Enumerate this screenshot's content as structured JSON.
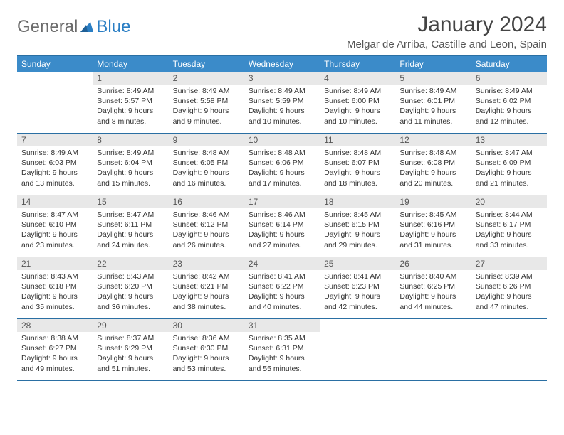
{
  "logo": {
    "general": "General",
    "blue": "Blue"
  },
  "title": "January 2024",
  "location": "Melgar de Arriba, Castille and Leon, Spain",
  "colors": {
    "header_bg": "#3b8bc9",
    "header_text": "#ffffff",
    "row_border": "#2a6fa3",
    "daynum_bg": "#e8e8e8",
    "logo_blue": "#2a7ec4",
    "logo_gray": "#6b6b6b",
    "body_text": "#333333"
  },
  "dayNames": [
    "Sunday",
    "Monday",
    "Tuesday",
    "Wednesday",
    "Thursday",
    "Friday",
    "Saturday"
  ],
  "weeks": [
    [
      null,
      {
        "n": "1",
        "sr": "Sunrise: 8:49 AM",
        "ss": "Sunset: 5:57 PM",
        "dl": "Daylight: 9 hours and 8 minutes."
      },
      {
        "n": "2",
        "sr": "Sunrise: 8:49 AM",
        "ss": "Sunset: 5:58 PM",
        "dl": "Daylight: 9 hours and 9 minutes."
      },
      {
        "n": "3",
        "sr": "Sunrise: 8:49 AM",
        "ss": "Sunset: 5:59 PM",
        "dl": "Daylight: 9 hours and 10 minutes."
      },
      {
        "n": "4",
        "sr": "Sunrise: 8:49 AM",
        "ss": "Sunset: 6:00 PM",
        "dl": "Daylight: 9 hours and 10 minutes."
      },
      {
        "n": "5",
        "sr": "Sunrise: 8:49 AM",
        "ss": "Sunset: 6:01 PM",
        "dl": "Daylight: 9 hours and 11 minutes."
      },
      {
        "n": "6",
        "sr": "Sunrise: 8:49 AM",
        "ss": "Sunset: 6:02 PM",
        "dl": "Daylight: 9 hours and 12 minutes."
      }
    ],
    [
      {
        "n": "7",
        "sr": "Sunrise: 8:49 AM",
        "ss": "Sunset: 6:03 PM",
        "dl": "Daylight: 9 hours and 13 minutes."
      },
      {
        "n": "8",
        "sr": "Sunrise: 8:49 AM",
        "ss": "Sunset: 6:04 PM",
        "dl": "Daylight: 9 hours and 15 minutes."
      },
      {
        "n": "9",
        "sr": "Sunrise: 8:48 AM",
        "ss": "Sunset: 6:05 PM",
        "dl": "Daylight: 9 hours and 16 minutes."
      },
      {
        "n": "10",
        "sr": "Sunrise: 8:48 AM",
        "ss": "Sunset: 6:06 PM",
        "dl": "Daylight: 9 hours and 17 minutes."
      },
      {
        "n": "11",
        "sr": "Sunrise: 8:48 AM",
        "ss": "Sunset: 6:07 PM",
        "dl": "Daylight: 9 hours and 18 minutes."
      },
      {
        "n": "12",
        "sr": "Sunrise: 8:48 AM",
        "ss": "Sunset: 6:08 PM",
        "dl": "Daylight: 9 hours and 20 minutes."
      },
      {
        "n": "13",
        "sr": "Sunrise: 8:47 AM",
        "ss": "Sunset: 6:09 PM",
        "dl": "Daylight: 9 hours and 21 minutes."
      }
    ],
    [
      {
        "n": "14",
        "sr": "Sunrise: 8:47 AM",
        "ss": "Sunset: 6:10 PM",
        "dl": "Daylight: 9 hours and 23 minutes."
      },
      {
        "n": "15",
        "sr": "Sunrise: 8:47 AM",
        "ss": "Sunset: 6:11 PM",
        "dl": "Daylight: 9 hours and 24 minutes."
      },
      {
        "n": "16",
        "sr": "Sunrise: 8:46 AM",
        "ss": "Sunset: 6:12 PM",
        "dl": "Daylight: 9 hours and 26 minutes."
      },
      {
        "n": "17",
        "sr": "Sunrise: 8:46 AM",
        "ss": "Sunset: 6:14 PM",
        "dl": "Daylight: 9 hours and 27 minutes."
      },
      {
        "n": "18",
        "sr": "Sunrise: 8:45 AM",
        "ss": "Sunset: 6:15 PM",
        "dl": "Daylight: 9 hours and 29 minutes."
      },
      {
        "n": "19",
        "sr": "Sunrise: 8:45 AM",
        "ss": "Sunset: 6:16 PM",
        "dl": "Daylight: 9 hours and 31 minutes."
      },
      {
        "n": "20",
        "sr": "Sunrise: 8:44 AM",
        "ss": "Sunset: 6:17 PM",
        "dl": "Daylight: 9 hours and 33 minutes."
      }
    ],
    [
      {
        "n": "21",
        "sr": "Sunrise: 8:43 AM",
        "ss": "Sunset: 6:18 PM",
        "dl": "Daylight: 9 hours and 35 minutes."
      },
      {
        "n": "22",
        "sr": "Sunrise: 8:43 AM",
        "ss": "Sunset: 6:20 PM",
        "dl": "Daylight: 9 hours and 36 minutes."
      },
      {
        "n": "23",
        "sr": "Sunrise: 8:42 AM",
        "ss": "Sunset: 6:21 PM",
        "dl": "Daylight: 9 hours and 38 minutes."
      },
      {
        "n": "24",
        "sr": "Sunrise: 8:41 AM",
        "ss": "Sunset: 6:22 PM",
        "dl": "Daylight: 9 hours and 40 minutes."
      },
      {
        "n": "25",
        "sr": "Sunrise: 8:41 AM",
        "ss": "Sunset: 6:23 PM",
        "dl": "Daylight: 9 hours and 42 minutes."
      },
      {
        "n": "26",
        "sr": "Sunrise: 8:40 AM",
        "ss": "Sunset: 6:25 PM",
        "dl": "Daylight: 9 hours and 44 minutes."
      },
      {
        "n": "27",
        "sr": "Sunrise: 8:39 AM",
        "ss": "Sunset: 6:26 PM",
        "dl": "Daylight: 9 hours and 47 minutes."
      }
    ],
    [
      {
        "n": "28",
        "sr": "Sunrise: 8:38 AM",
        "ss": "Sunset: 6:27 PM",
        "dl": "Daylight: 9 hours and 49 minutes."
      },
      {
        "n": "29",
        "sr": "Sunrise: 8:37 AM",
        "ss": "Sunset: 6:29 PM",
        "dl": "Daylight: 9 hours and 51 minutes."
      },
      {
        "n": "30",
        "sr": "Sunrise: 8:36 AM",
        "ss": "Sunset: 6:30 PM",
        "dl": "Daylight: 9 hours and 53 minutes."
      },
      {
        "n": "31",
        "sr": "Sunrise: 8:35 AM",
        "ss": "Sunset: 6:31 PM",
        "dl": "Daylight: 9 hours and 55 minutes."
      },
      null,
      null,
      null
    ]
  ]
}
